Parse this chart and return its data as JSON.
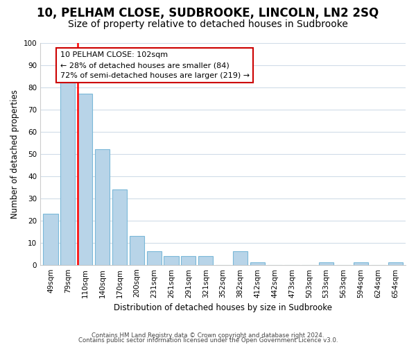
{
  "title": "10, PELHAM CLOSE, SUDBROOKE, LINCOLN, LN2 2SQ",
  "subtitle": "Size of property relative to detached houses in Sudbrooke",
  "xlabel": "Distribution of detached houses by size in Sudbrooke",
  "ylabel": "Number of detached properties",
  "footer_line1": "Contains HM Land Registry data © Crown copyright and database right 2024.",
  "footer_line2": "Contains public sector information licensed under the Open Government Licence v3.0.",
  "bar_labels": [
    "49sqm",
    "79sqm",
    "110sqm",
    "140sqm",
    "170sqm",
    "200sqm",
    "231sqm",
    "261sqm",
    "291sqm",
    "321sqm",
    "352sqm",
    "382sqm",
    "412sqm",
    "442sqm",
    "473sqm",
    "503sqm",
    "533sqm",
    "563sqm",
    "594sqm",
    "624sqm",
    "654sqm"
  ],
  "bar_values": [
    23,
    83,
    77,
    52,
    34,
    13,
    6,
    4,
    4,
    4,
    0,
    6,
    1,
    0,
    0,
    0,
    1,
    0,
    1,
    0,
    1
  ],
  "bar_color": "#b8d4e8",
  "bar_edge_color": "#7ab8d8",
  "red_line_index": 2,
  "annotation_line1": "10 PELHAM CLOSE: 102sqm",
  "annotation_line2": "← 28% of detached houses are smaller (84)",
  "annotation_line3": "72% of semi-detached houses are larger (219) →",
  "annotation_box_color": "#ffffff",
  "annotation_box_edge": "#cc0000",
  "ylim": [
    0,
    100
  ],
  "yticks": [
    0,
    10,
    20,
    30,
    40,
    50,
    60,
    70,
    80,
    90,
    100
  ],
  "bg_color": "#ffffff",
  "grid_color": "#d0dce8",
  "title_fontsize": 12,
  "subtitle_fontsize": 10
}
